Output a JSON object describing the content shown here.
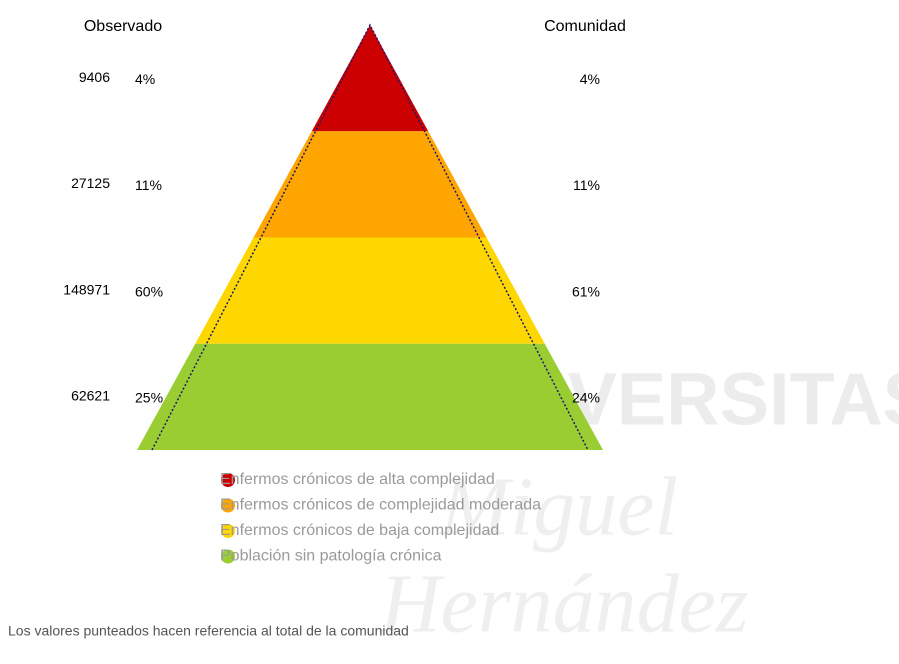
{
  "chart_data": {
    "type": "pyramid",
    "left_title": "Observado",
    "right_title": "Comunidad",
    "categories": [
      "Enfermos crónicos de alta complejidad",
      "Enfermos crónicos de complejidad moderada",
      "Enfermos crónicos de baja complejidad",
      "Población sin patología crónica"
    ],
    "colors": [
      "#cc0000",
      "#ffa500",
      "#ffd700",
      "#9acd32"
    ],
    "observed_counts": [
      9406,
      27125,
      148971,
      62621
    ],
    "observed_percent": [
      4,
      11,
      60,
      25
    ],
    "observed_value_labels": [
      "4%",
      "11%",
      "60%",
      "25%"
    ],
    "community_percent": [
      4,
      11,
      61,
      24
    ],
    "community_value_labels": [
      "4%",
      "11%",
      "61%",
      "24%"
    ]
  },
  "note": "Los valores punteados hacen referencia al total de la comunidad",
  "watermark": [
    "UNIVERSITAS",
    "Miguel",
    "Hernández"
  ]
}
